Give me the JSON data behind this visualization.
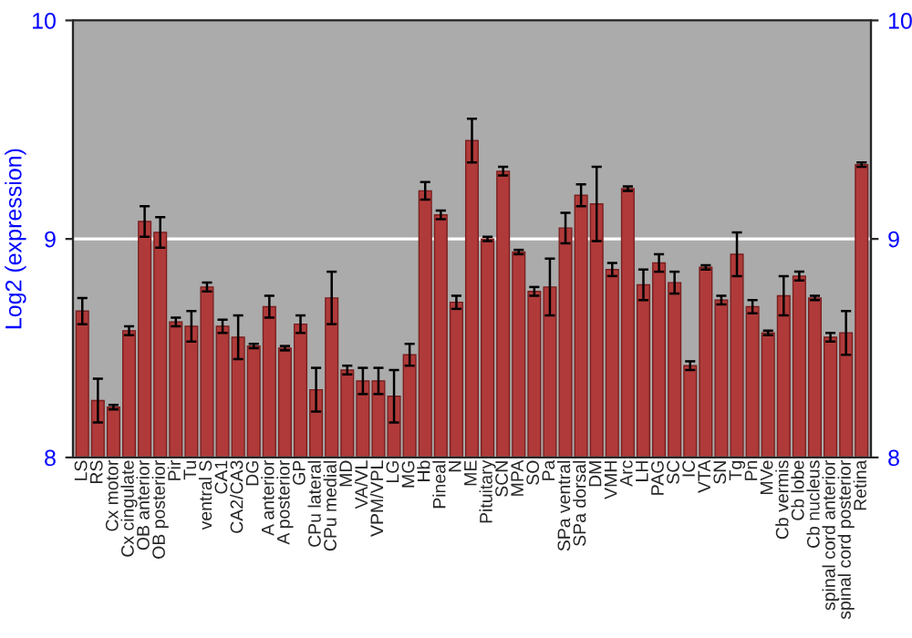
{
  "chart_data": {
    "type": "bar",
    "ylabel": "Log2 (expression)",
    "categories": [
      "LS",
      "RS",
      "Cx motor",
      "Cx cingulate",
      "OB anterior",
      "OB posterior",
      "Pir",
      "Tu",
      "ventral S",
      "CA1",
      "CA2/CA3",
      "DG",
      "A anterior",
      "A posterior",
      "GP",
      "CPu lateral",
      "CPu medial",
      "MD",
      "VA/VL",
      "VPM/VPL",
      "LG",
      "MG",
      "Hb",
      "Pineal",
      "N",
      "ME",
      "Pituitary",
      "SCN",
      "MPA",
      "SO",
      "Pa",
      "SPa ventral",
      "SPa dorsal",
      "DM",
      "VMH",
      "Arc",
      "LH",
      "PAG",
      "SC",
      "IC",
      "VTA",
      "SN",
      "Tg",
      "Pn",
      "MVe",
      "Cb vermis",
      "Cb lobe",
      "Cb nucleus",
      "spinal cord anterior",
      "spinal cord posterior",
      "Retina"
    ],
    "values": [
      8.67,
      8.26,
      8.23,
      8.58,
      9.08,
      9.03,
      8.62,
      8.6,
      8.78,
      8.6,
      8.55,
      8.51,
      8.69,
      8.5,
      8.61,
      8.31,
      8.73,
      8.4,
      8.35,
      8.35,
      8.28,
      8.47,
      9.22,
      9.11,
      8.71,
      9.45,
      9.0,
      9.31,
      8.94,
      8.76,
      8.78,
      9.05,
      9.2,
      9.16,
      8.86,
      9.23,
      8.79,
      8.89,
      8.8,
      8.42,
      8.87,
      8.72,
      8.93,
      8.69,
      8.57,
      8.74,
      8.83,
      8.73,
      8.55,
      8.57,
      9.34
    ],
    "errors": [
      0.06,
      0.1,
      0.01,
      0.02,
      0.07,
      0.07,
      0.02,
      0.07,
      0.02,
      0.03,
      0.1,
      0.01,
      0.05,
      0.01,
      0.04,
      0.1,
      0.12,
      0.02,
      0.06,
      0.06,
      0.12,
      0.05,
      0.04,
      0.02,
      0.03,
      0.1,
      0.01,
      0.02,
      0.01,
      0.02,
      0.13,
      0.07,
      0.05,
      0.17,
      0.03,
      0.01,
      0.07,
      0.04,
      0.05,
      0.02,
      0.01,
      0.02,
      0.1,
      0.03,
      0.01,
      0.09,
      0.02,
      0.01,
      0.02,
      0.1,
      0.01
    ],
    "color": "#b03a3a",
    "ylim": [
      8,
      10
    ],
    "yticks": [
      8,
      9,
      10
    ],
    "y2lim": [
      8,
      10
    ],
    "y2ticks": [
      8,
      9,
      10
    ],
    "grid": "y",
    "legend": false
  }
}
